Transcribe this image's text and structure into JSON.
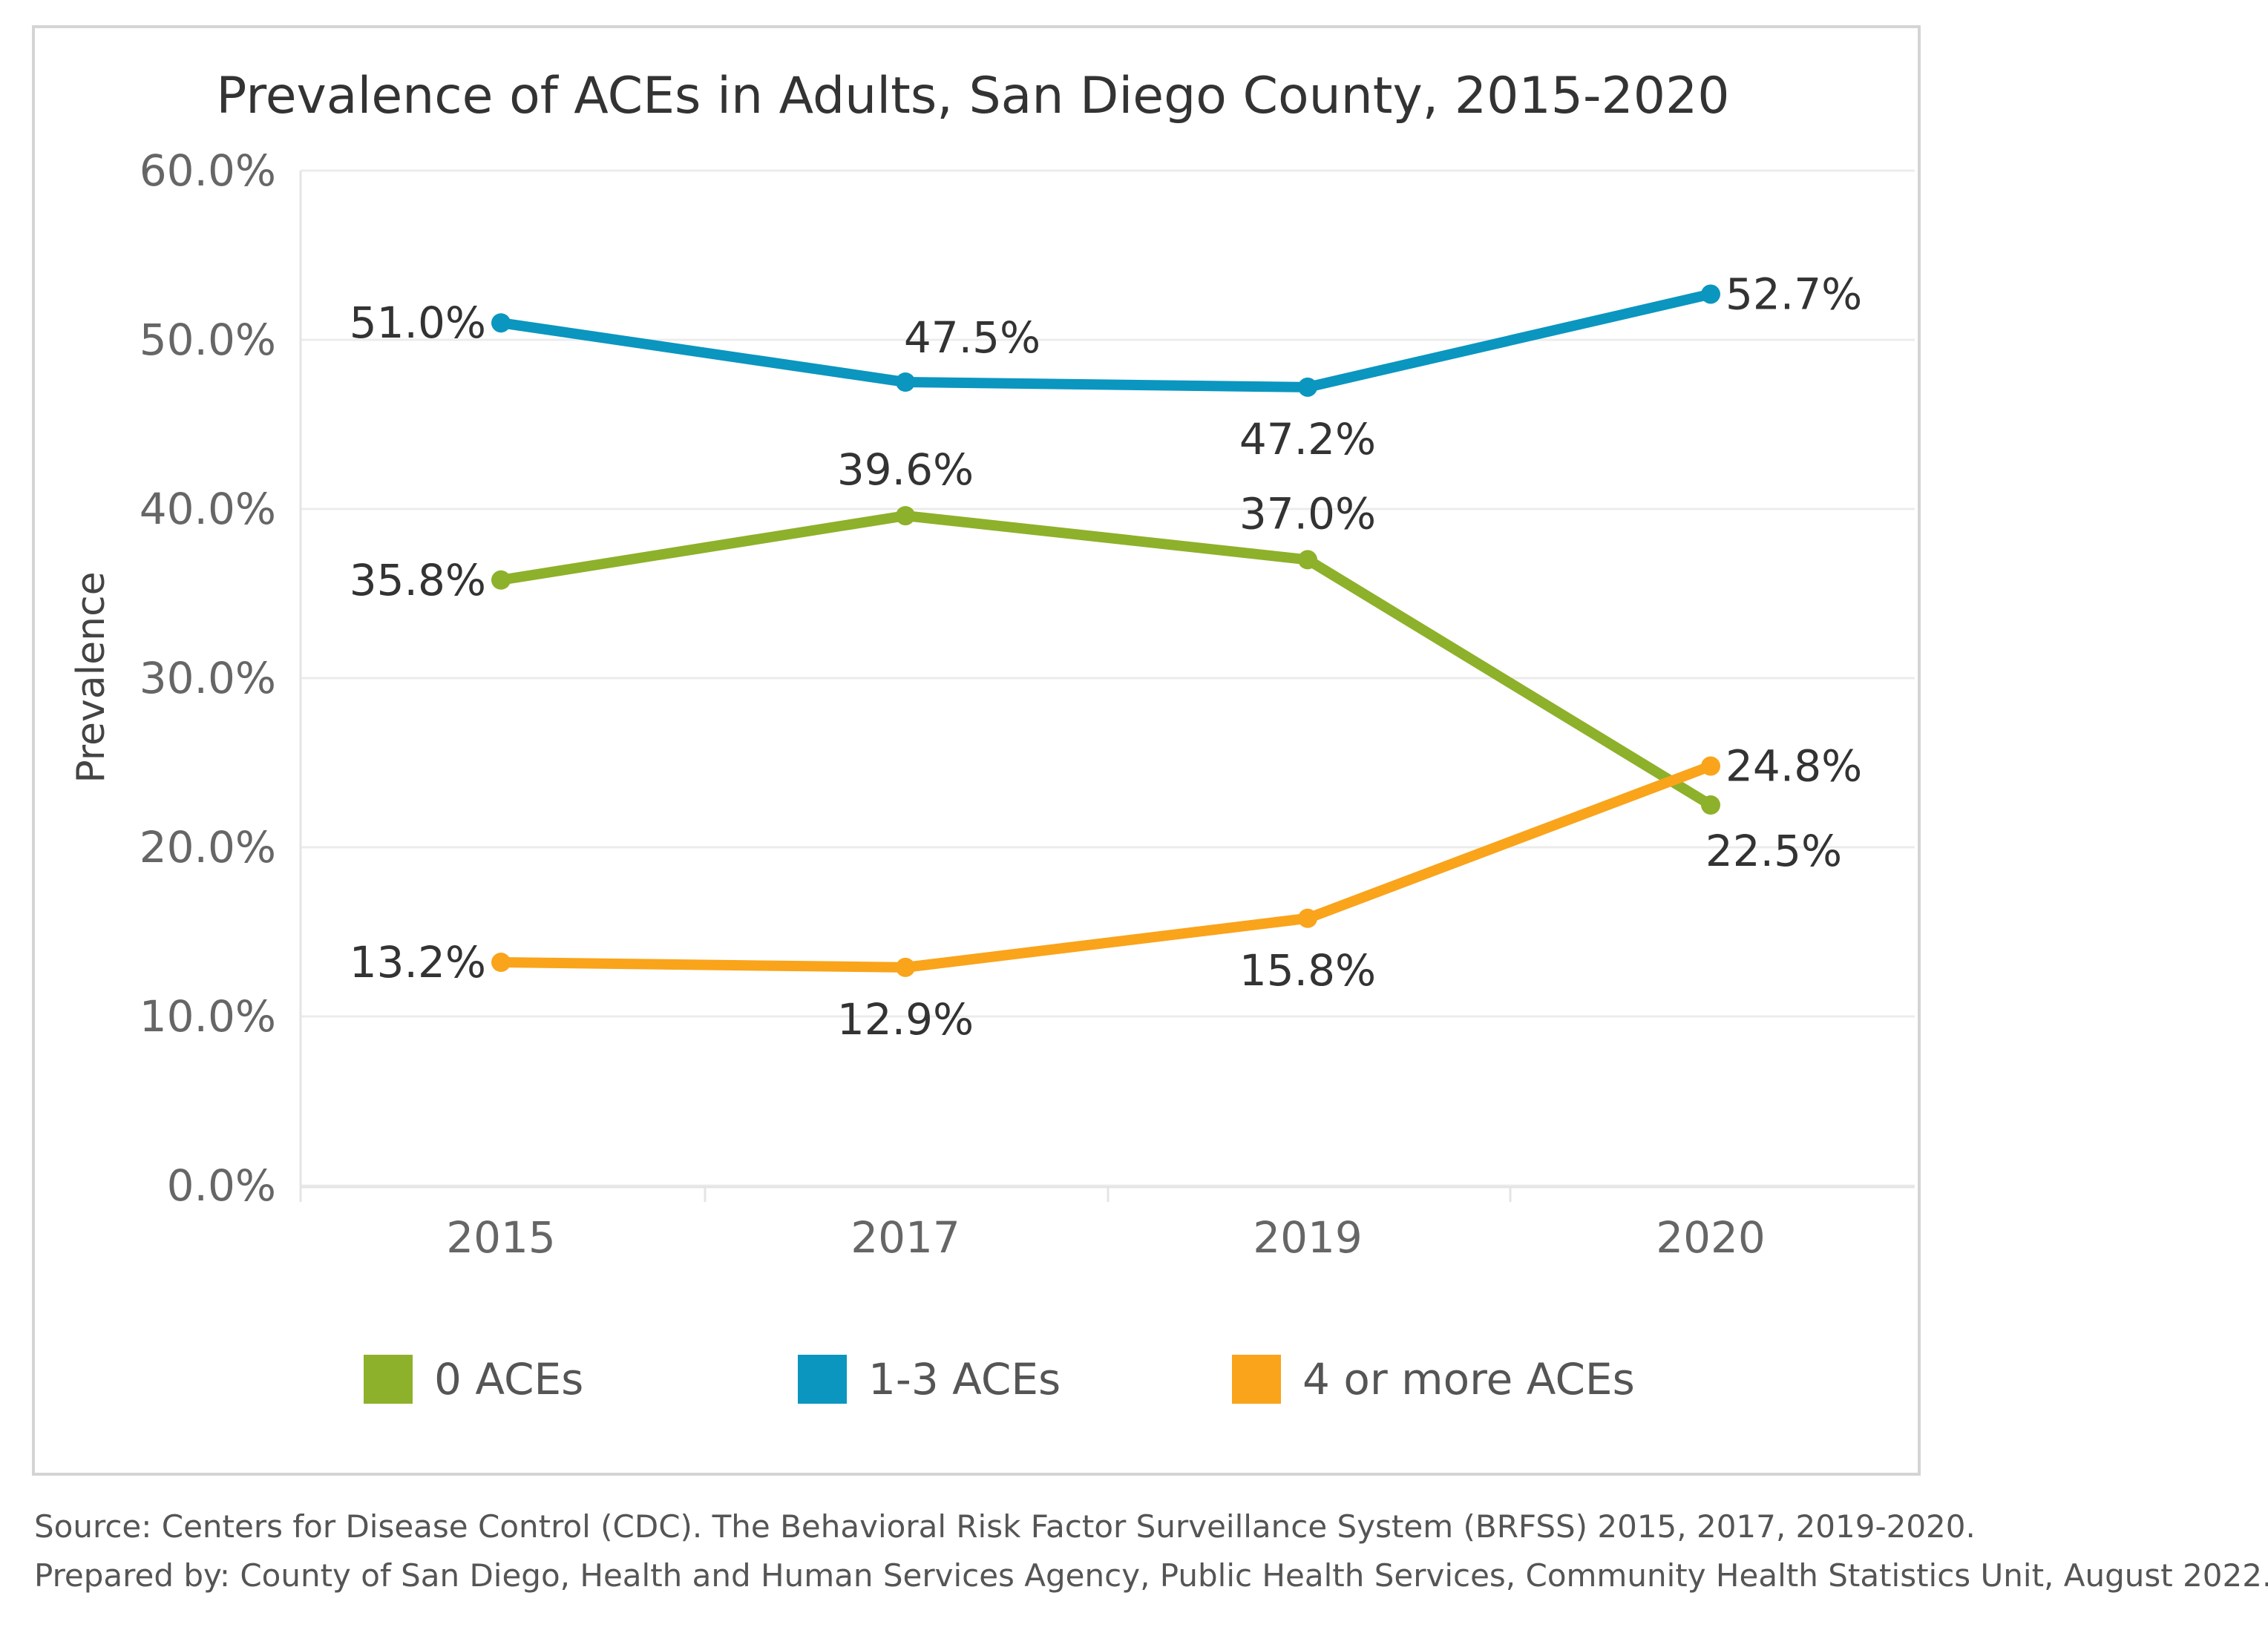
{
  "chart_data": {
    "type": "line",
    "title": "Prevalence of ACEs in Adults, San Diego County, 2015-2020",
    "xlabel": "",
    "ylabel": "Prevalence",
    "categories": [
      "2015",
      "2017",
      "2019",
      "2020"
    ],
    "ylim": [
      0,
      60
    ],
    "y_ticks": [
      "0.0%",
      "10.0%",
      "20.0%",
      "30.0%",
      "40.0%",
      "50.0%",
      "60.0%"
    ],
    "grid": true,
    "legend_position": "bottom",
    "series": [
      {
        "name": "0 ACEs",
        "color": "#8DB12A",
        "values": [
          35.8,
          39.6,
          37.0,
          22.5
        ],
        "labels": [
          "35.8%",
          "39.6%",
          "37.0%",
          "22.5%"
        ]
      },
      {
        "name": "1-3 ACEs",
        "color": "#0A96BF",
        "values": [
          51.0,
          47.5,
          47.2,
          52.7
        ],
        "labels": [
          "51.0%",
          "47.5%",
          "47.2%",
          "52.7%"
        ]
      },
      {
        "name": "4 or more ACEs",
        "color": "#F9A41B",
        "values": [
          13.2,
          12.9,
          15.8,
          24.8
        ],
        "labels": [
          "13.2%",
          "12.9%",
          "15.8%",
          "24.8%"
        ]
      }
    ]
  },
  "source": {
    "line1": "Source: Centers for Disease Control (CDC). The Behavioral Risk Factor Surveillance System (BRFSS) 2015, 2017, 2019-2020.",
    "line2": "Prepared by: County of San Diego, Health and Human Services Agency, Public Health Services, Community Health Statistics Unit, August 2022."
  }
}
